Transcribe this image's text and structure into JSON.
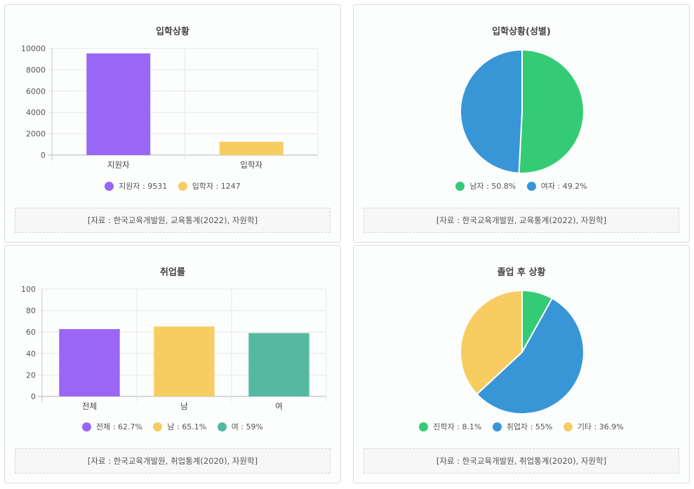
{
  "colors": {
    "purple": "#9966f5",
    "yellow": "#f7cd62",
    "teal": "#55b9a1",
    "green": "#34cb75",
    "blue": "#3896d7"
  },
  "cards": {
    "admission": {
      "title": "입학상황",
      "source": "[자료 : 한국교육개발원, 교육통계(2022), 자원학]",
      "legend": [
        "지원자 : 9531",
        "입학자 : 1247"
      ]
    },
    "gender": {
      "title": "입학상황(성별)",
      "source": "[자료 : 한국교육개발원, 교육통계(2022), 자원학]",
      "legend": [
        "남자 : 50.8%",
        "여자 : 49.2%"
      ]
    },
    "employment": {
      "title": "취업률",
      "source": "[자료 : 한국교육개발원, 취업통계(2020), 자원학]",
      "legend": [
        "전체 : 62.7%",
        "남 : 65.1%",
        "여 : 59%"
      ]
    },
    "after": {
      "title": "졸업 후 상황",
      "source": "[자료 : 한국교육개발원, 취업통계(2020), 자원학]",
      "legend": [
        "진학자 : 8.1%",
        "취업자 : 55%",
        "기타 : 36.9%"
      ]
    }
  },
  "chart_data": [
    {
      "type": "bar",
      "title": "입학상황",
      "categories": [
        "지원자",
        "입학자"
      ],
      "values": [
        9531,
        1247
      ],
      "ylim": [
        0,
        10000
      ],
      "yticks": [
        "0",
        "2000",
        "4000",
        "6000",
        "8000",
        "10000"
      ],
      "colors": [
        "#9966f5",
        "#f7cd62"
      ],
      "legend": "bottom"
    },
    {
      "type": "pie",
      "title": "입학상황(성별)",
      "labels": [
        "남자",
        "여자"
      ],
      "values": [
        50.8,
        49.2
      ],
      "colors": [
        "#34cb75",
        "#3896d7"
      ],
      "legend": "bottom"
    },
    {
      "type": "bar",
      "title": "취업률",
      "categories": [
        "전체",
        "남",
        "여"
      ],
      "values": [
        62.7,
        65.1,
        59
      ],
      "ylim": [
        0,
        100
      ],
      "yticks": [
        "0",
        "20",
        "40",
        "60",
        "80",
        "100"
      ],
      "colors": [
        "#9966f5",
        "#f7cd62",
        "#55b9a1"
      ],
      "legend": "bottom"
    },
    {
      "type": "pie",
      "title": "졸업 후 상황",
      "labels": [
        "진학자",
        "취업자",
        "기타"
      ],
      "values": [
        8.1,
        55,
        36.9
      ],
      "colors": [
        "#34cb75",
        "#3896d7",
        "#f7cd62"
      ],
      "legend": "bottom"
    }
  ]
}
